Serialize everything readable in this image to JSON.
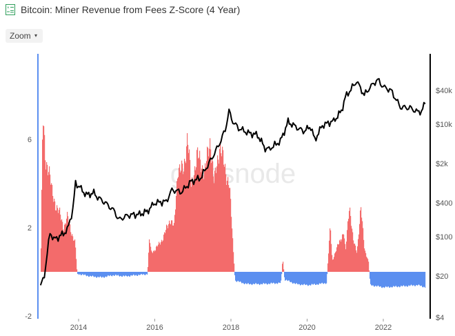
{
  "header": {
    "title": "Bitcoin: Miner Revenue from Fees Z-Score (4 Year)",
    "icon": "chart-table-icon"
  },
  "toolbar": {
    "zoom_label": "Zoom",
    "zoom_caret": "▾"
  },
  "watermark": "glassnode",
  "chart_data": {
    "type": "area",
    "title": "Bitcoin: Miner Revenue from Fees Z-Score (4 Year)",
    "x_ticks": [
      "2014",
      "2016",
      "2018",
      "2020",
      "2022"
    ],
    "y_left_ticks": [
      "6",
      "2",
      "-2"
    ],
    "y_right_ticks": [
      "$40k",
      "$10k",
      "$2k",
      "$400",
      "$100",
      "$20",
      "$4"
    ],
    "y_left_range": [
      -2,
      8.2
    ],
    "y_right_scale": "log",
    "colors": {
      "positive": "#f36b6b",
      "negative": "#5b8ff0",
      "price": "#000000",
      "left_axis": "#5b8ff0",
      "right_axis": "#000000"
    },
    "series": [
      {
        "kind": "zscore",
        "points": [
          [
            2013.0,
            0.5
          ],
          [
            2013.05,
            7.0
          ],
          [
            2013.12,
            5.0
          ],
          [
            2013.2,
            4.8
          ],
          [
            2013.3,
            3.5
          ],
          [
            2013.4,
            3.0
          ],
          [
            2013.5,
            2.6
          ],
          [
            2013.6,
            2.0
          ],
          [
            2013.7,
            2.5
          ],
          [
            2013.8,
            1.8
          ],
          [
            2013.9,
            1.3
          ],
          [
            2013.95,
            0.0
          ],
          [
            2014.0,
            -0.1
          ],
          [
            2014.3,
            -0.2
          ],
          [
            2014.6,
            -0.25
          ],
          [
            2014.9,
            -0.15
          ],
          [
            2015.2,
            -0.2
          ],
          [
            2015.5,
            -0.15
          ],
          [
            2015.8,
            -0.1
          ],
          [
            2015.85,
            1.5
          ],
          [
            2015.9,
            0.9
          ],
          [
            2016.0,
            1.0
          ],
          [
            2016.2,
            1.5
          ],
          [
            2016.4,
            2.4
          ],
          [
            2016.5,
            2.0
          ],
          [
            2016.6,
            4.8
          ],
          [
            2016.75,
            4.5
          ],
          [
            2016.85,
            6.3
          ],
          [
            2016.95,
            3.8
          ],
          [
            2017.1,
            5.3
          ],
          [
            2017.3,
            4.5
          ],
          [
            2017.45,
            6.0
          ],
          [
            2017.55,
            4.0
          ],
          [
            2017.7,
            5.8
          ],
          [
            2017.85,
            4.5
          ],
          [
            2017.95,
            4.0
          ],
          [
            2018.05,
            1.0
          ],
          [
            2018.1,
            -0.4
          ],
          [
            2018.4,
            -0.55
          ],
          [
            2018.8,
            -0.55
          ],
          [
            2019.3,
            -0.5
          ],
          [
            2019.35,
            0.6
          ],
          [
            2019.4,
            -0.35
          ],
          [
            2019.7,
            -0.55
          ],
          [
            2020.0,
            -0.6
          ],
          [
            2020.3,
            -0.55
          ],
          [
            2020.5,
            -0.5
          ],
          [
            2020.6,
            2.1
          ],
          [
            2020.65,
            0.5
          ],
          [
            2020.8,
            1.2
          ],
          [
            2020.95,
            1.8
          ],
          [
            2021.0,
            0.9
          ],
          [
            2021.1,
            3.1
          ],
          [
            2021.2,
            1.4
          ],
          [
            2021.3,
            0.9
          ],
          [
            2021.4,
            2.9
          ],
          [
            2021.5,
            1.0
          ],
          [
            2021.6,
            0.5
          ],
          [
            2021.65,
            -0.6
          ],
          [
            2022.0,
            -0.7
          ],
          [
            2022.5,
            -0.65
          ],
          [
            2022.9,
            -0.6
          ],
          [
            2023.1,
            -0.7
          ]
        ]
      },
      {
        "kind": "price",
        "points": [
          [
            2013.0,
            13
          ],
          [
            2013.1,
            20
          ],
          [
            2013.25,
            120
          ],
          [
            2013.35,
            90
          ],
          [
            2013.5,
            100
          ],
          [
            2013.7,
            130
          ],
          [
            2013.85,
            300
          ],
          [
            2013.92,
            900
          ],
          [
            2014.0,
            800
          ],
          [
            2014.2,
            550
          ],
          [
            2014.4,
            600
          ],
          [
            2014.5,
            500
          ],
          [
            2014.7,
            400
          ],
          [
            2014.95,
            280
          ],
          [
            2015.05,
            200
          ],
          [
            2015.3,
            240
          ],
          [
            2015.6,
            250
          ],
          [
            2015.8,
            280
          ],
          [
            2016.0,
            400
          ],
          [
            2016.3,
            420
          ],
          [
            2016.45,
            680
          ],
          [
            2016.7,
            620
          ],
          [
            2016.95,
            950
          ],
          [
            2017.2,
            1100
          ],
          [
            2017.5,
            2500
          ],
          [
            2017.7,
            4500
          ],
          [
            2017.85,
            8000
          ],
          [
            2017.95,
            17000
          ],
          [
            2018.05,
            11000
          ],
          [
            2018.2,
            8500
          ],
          [
            2018.45,
            7000
          ],
          [
            2018.7,
            6400
          ],
          [
            2018.9,
            3700
          ],
          [
            2019.0,
            3600
          ],
          [
            2019.3,
            5000
          ],
          [
            2019.5,
            11000
          ],
          [
            2019.7,
            9000
          ],
          [
            2019.9,
            7500
          ],
          [
            2020.1,
            9000
          ],
          [
            2020.2,
            5200
          ],
          [
            2020.4,
            9500
          ],
          [
            2020.7,
            11500
          ],
          [
            2020.9,
            17000
          ],
          [
            2021.0,
            30000
          ],
          [
            2021.3,
            58000
          ],
          [
            2021.5,
            33000
          ],
          [
            2021.65,
            45000
          ],
          [
            2021.85,
            62000
          ],
          [
            2022.0,
            46000
          ],
          [
            2022.2,
            40000
          ],
          [
            2022.45,
            20000
          ],
          [
            2022.7,
            19500
          ],
          [
            2022.9,
            16500
          ],
          [
            2023.0,
            17000
          ],
          [
            2023.1,
            23000
          ]
        ]
      }
    ],
    "legend": "none",
    "grid": false
  }
}
